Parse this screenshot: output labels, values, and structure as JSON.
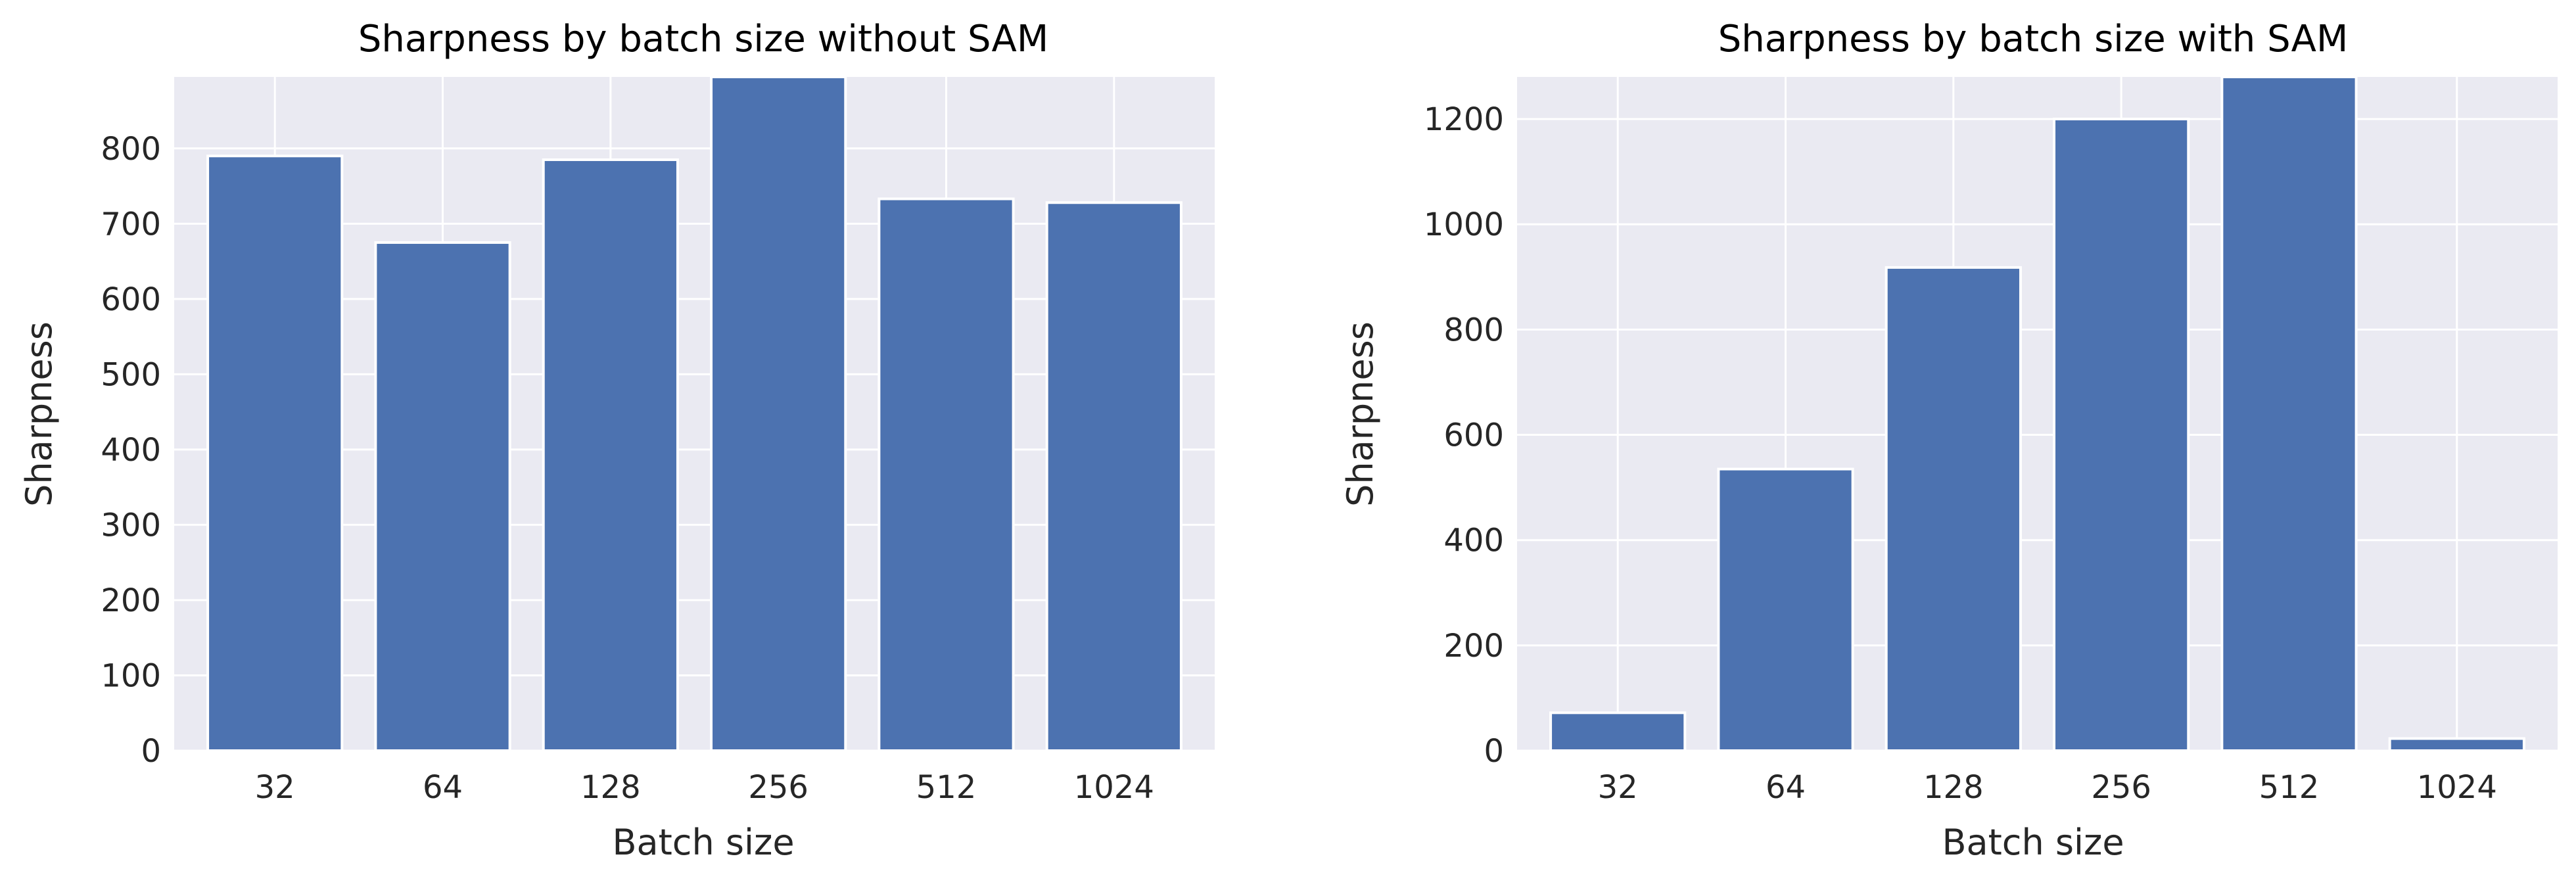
{
  "chart_data": [
    {
      "type": "bar",
      "title": "Sharpness by batch size without SAM",
      "xlabel": "Batch size",
      "ylabel": "Sharpness",
      "categories": [
        "32",
        "64",
        "128",
        "256",
        "512",
        "1024"
      ],
      "values": [
        790,
        675,
        785,
        895,
        733,
        728
      ],
      "ylim": [
        0,
        895
      ],
      "yticks": [
        0,
        100,
        200,
        300,
        400,
        500,
        600,
        700,
        800
      ],
      "grid": true,
      "bar_color": "#4c72b0",
      "background_color": "#eaeaf2",
      "grid_color": "#ffffff"
    },
    {
      "type": "bar",
      "title": "Sharpness by batch size with SAM",
      "xlabel": "Batch size",
      "ylabel": "Sharpness",
      "categories": [
        "32",
        "64",
        "128",
        "256",
        "512",
        "1024"
      ],
      "values": [
        72,
        535,
        918,
        1200,
        1280,
        23
      ],
      "ylim": [
        0,
        1280
      ],
      "yticks": [
        0,
        200,
        400,
        600,
        800,
        1000,
        1200
      ],
      "grid": true,
      "bar_color": "#4c72b0",
      "background_color": "#eaeaf2",
      "grid_color": "#ffffff"
    }
  ]
}
